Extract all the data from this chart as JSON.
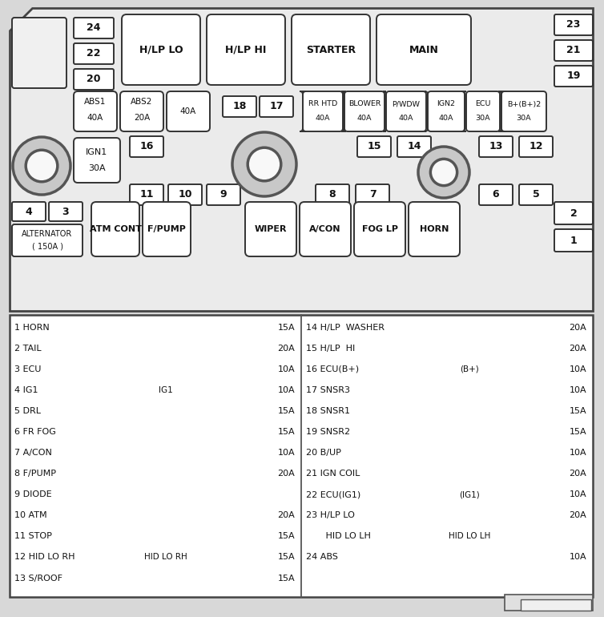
{
  "bg_color": "#d8d8d8",
  "panel_bg": "#f0f0f0",
  "box_fc": "#ffffff",
  "box_ec": "#333333",
  "fuse_legend_left": [
    {
      "num": "1",
      "name": "HORN",
      "mid": "",
      "amp": "15A"
    },
    {
      "num": "2",
      "name": "TAIL",
      "mid": "",
      "amp": "20A"
    },
    {
      "num": "3",
      "name": "ECU",
      "mid": "",
      "amp": "10A"
    },
    {
      "num": "4",
      "name": "IG1",
      "mid": "IG1",
      "amp": "10A"
    },
    {
      "num": "5",
      "name": "DRL",
      "mid": "",
      "amp": "15A"
    },
    {
      "num": "6",
      "name": "FR FOG",
      "mid": "",
      "amp": "15A"
    },
    {
      "num": "7",
      "name": "A/CON",
      "mid": "",
      "amp": "10A"
    },
    {
      "num": "8",
      "name": "F/PUMP",
      "mid": "",
      "amp": "20A"
    },
    {
      "num": "9",
      "name": "DIODE",
      "mid": "",
      "amp": ""
    },
    {
      "num": "10",
      "name": "ATM",
      "mid": "",
      "amp": "20A"
    },
    {
      "num": "11",
      "name": "STOP",
      "mid": "",
      "amp": "15A"
    },
    {
      "num": "12",
      "name": "HID LO RH",
      "mid": "HID LO RH",
      "amp": "15A"
    },
    {
      "num": "13",
      "name": "S/ROOF",
      "mid": "",
      "amp": "15A"
    }
  ],
  "fuse_legend_right": [
    {
      "num": "14",
      "name": "H/LP  WASHER",
      "mid": "",
      "amp": "20A"
    },
    {
      "num": "15",
      "name": "H/LP  HI",
      "mid": "",
      "amp": "20A"
    },
    {
      "num": "16",
      "name": "ECU(B+)",
      "mid": "(B+)",
      "amp": "10A"
    },
    {
      "num": "17",
      "name": "SNSR3",
      "mid": "",
      "amp": "10A"
    },
    {
      "num": "18",
      "name": "SNSR1",
      "mid": "",
      "amp": "15A"
    },
    {
      "num": "19",
      "name": "SNSR2",
      "mid": "",
      "amp": "15A"
    },
    {
      "num": "20",
      "name": "B/UP",
      "mid": "",
      "amp": "10A"
    },
    {
      "num": "21",
      "name": "IGN COIL",
      "mid": "",
      "amp": "20A"
    },
    {
      "num": "22",
      "name": "ECU(IG1)",
      "mid": "(IG1)",
      "amp": "10A"
    },
    {
      "num": "23",
      "name": "H/LP LO",
      "mid": "",
      "amp": "20A"
    },
    {
      "num": "",
      "name": "    HID LO LH",
      "mid": "HID LO LH",
      "amp": ""
    },
    {
      "num": "24",
      "name": "ABS",
      "mid": "",
      "amp": "10A"
    }
  ]
}
